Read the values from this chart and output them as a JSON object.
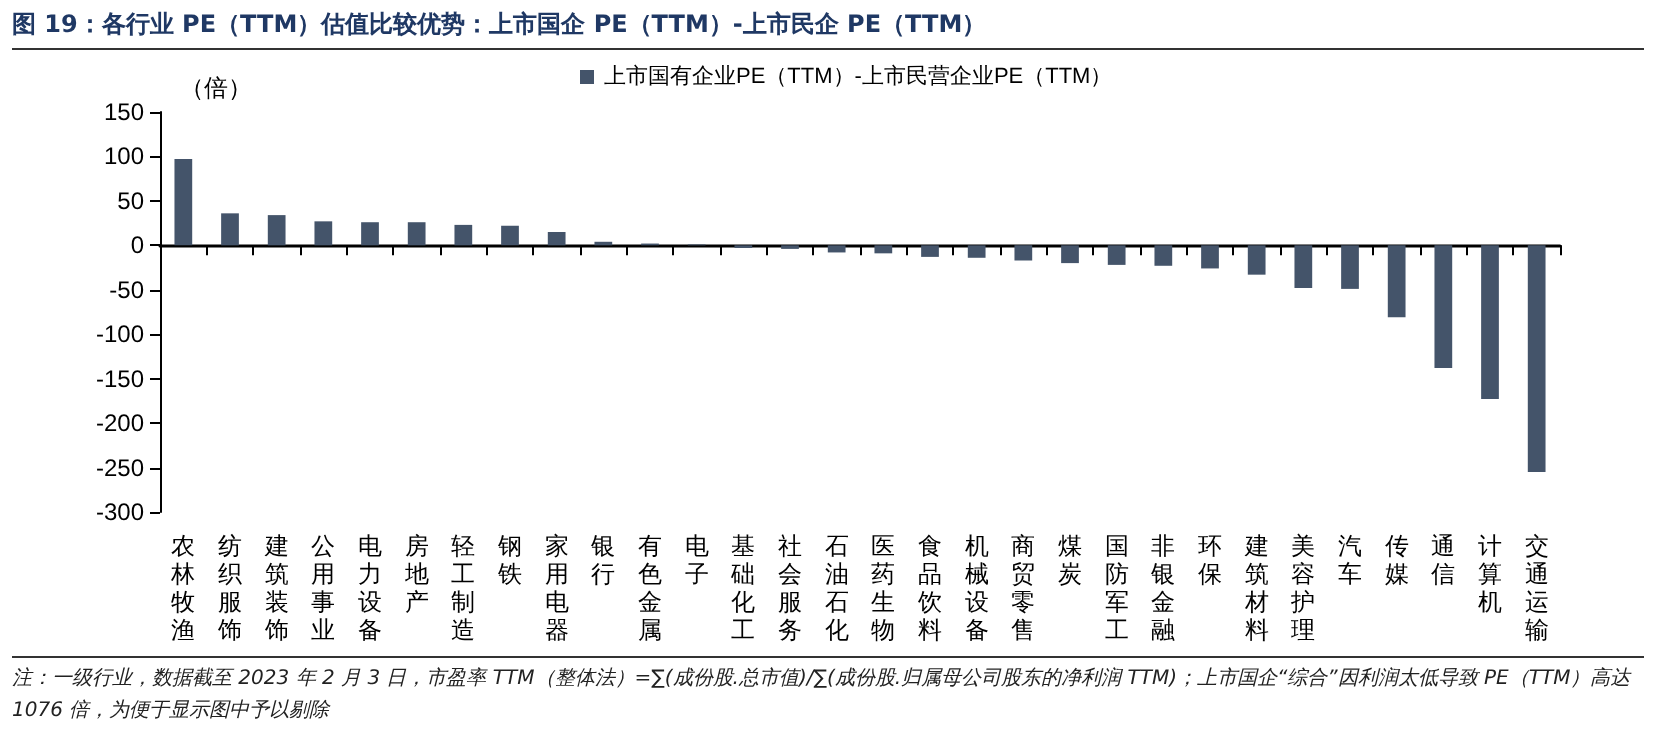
{
  "chart_data": {
    "type": "bar",
    "title": "图 19：各行业 PE（TTM）估值比较优势：上市国企 PE（TTM）-上市民企 PE（TTM）",
    "ylabel": "（倍）",
    "categories": [
      "农林牧渔",
      "纺织服饰",
      "建筑装饰",
      "公用事业",
      "电力设备",
      "房地产",
      "轻工制造",
      "钢铁",
      "家用电器",
      "银行",
      "有色金属",
      "电子",
      "基础化工",
      "社会服务",
      "石油石化",
      "医药生物",
      "食品饮料",
      "机械设备",
      "商贸零售",
      "煤炭",
      "国防军工",
      "非银金融",
      "环保",
      "建筑材料",
      "美容护理",
      "汽车",
      "传媒",
      "通信",
      "计算机",
      "交通运输"
    ],
    "series": [
      {
        "name": "上市国有企业PE（TTM）-上市民营企业PE（TTM）",
        "color": "#44546a",
        "values": [
          97,
          36,
          34,
          27,
          26,
          26,
          23,
          22,
          15,
          4,
          2,
          1,
          -3,
          -4,
          -8,
          -9,
          -13,
          -14,
          -17,
          -20,
          -22,
          -23,
          -26,
          -33,
          -48,
          -49,
          -81,
          -138,
          -173,
          -255
        ]
      }
    ],
    "ylim": [
      -300,
      150
    ],
    "yticks": [
      -300,
      -250,
      -200,
      -150,
      -100,
      -50,
      0,
      50,
      100,
      150
    ],
    "legend": "top",
    "annotations": [
      "注：一级行业，数据截至 2023 年 2 月 3 日，市盈率 TTM（整体法）=∑(成份股.总市值)/∑(成份股.归属母公司股东的净利润 TTM)；上市国企“综合”因利润太低导致 PE（TTM）高达 1076 倍，为便于显示图中予以剔除"
    ]
  }
}
